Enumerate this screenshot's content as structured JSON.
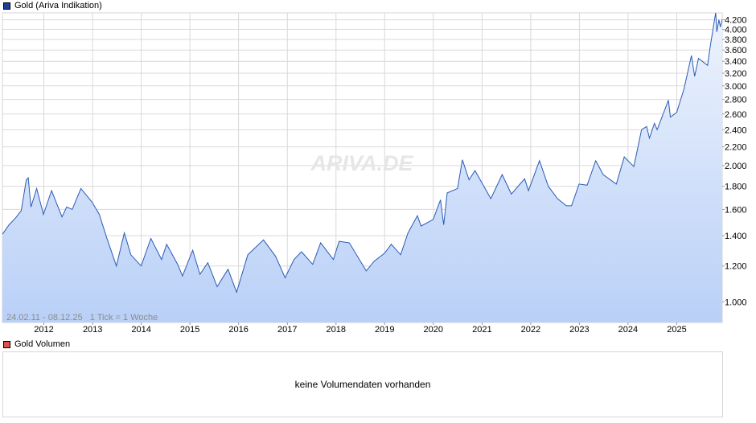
{
  "legend_price": {
    "label": "Gold (Ariva Indikation)",
    "color": "#1f3d99"
  },
  "legend_volume": {
    "label": "Gold Volumen",
    "color": "#d9534f"
  },
  "watermark": "ARIVA.DE",
  "range_info": "24.02.11 - 08.12.25   1 Tick = 1 Woche",
  "volume_message": "keine Volumendaten vorhanden",
  "colors": {
    "line": "#2a5bb5",
    "fill_top": "#eef3fd",
    "fill_bottom": "#b9d0f7",
    "grid": "#d9d9d9"
  },
  "chart_data": {
    "type": "area",
    "title": "Gold (Ariva Indikation)",
    "y_scale": "log",
    "ylim": [
      900,
      4350
    ],
    "xlim": [
      "2011-02-24",
      "2025-12-08"
    ],
    "y_ticks": [
      1000,
      1200,
      1400,
      1600,
      1800,
      2000,
      2200,
      2400,
      2600,
      2800,
      3000,
      3200,
      3400,
      3600,
      3800,
      4000,
      4200
    ],
    "y_tick_labels": [
      "1.000",
      "1.200",
      "1.400",
      "1.600",
      "1.800",
      "2.000",
      "2.200",
      "2.400",
      "2.600",
      "2.800",
      "3.000",
      "3.200",
      "3.400",
      "3.600",
      "3.800",
      "4.000",
      "4.200"
    ],
    "x_ticks": [
      "2012-01-01",
      "2013-01-01",
      "2014-01-01",
      "2015-01-01",
      "2016-01-01",
      "2017-01-01",
      "2018-01-01",
      "2019-01-01",
      "2020-01-01",
      "2021-01-01",
      "2022-01-01",
      "2023-01-01",
      "2024-01-01",
      "2025-01-01"
    ],
    "x_tick_labels": [
      "2012",
      "2013",
      "2014",
      "2015",
      "2016",
      "2017",
      "2018",
      "2019",
      "2020",
      "2021",
      "2022",
      "2023",
      "2024",
      "2025"
    ],
    "grid": true,
    "series": [
      {
        "name": "Gold (Ariva Indikation)",
        "points": [
          [
            "2011-02-24",
            1410
          ],
          [
            "2011-04-15",
            1480
          ],
          [
            "2011-06-01",
            1530
          ],
          [
            "2011-07-15",
            1590
          ],
          [
            "2011-08-22",
            1860
          ],
          [
            "2011-09-06",
            1880
          ],
          [
            "2011-09-26",
            1620
          ],
          [
            "2011-11-08",
            1780
          ],
          [
            "2011-12-29",
            1560
          ],
          [
            "2012-02-28",
            1760
          ],
          [
            "2012-05-16",
            1540
          ],
          [
            "2012-06-20",
            1620
          ],
          [
            "2012-08-01",
            1600
          ],
          [
            "2012-10-05",
            1780
          ],
          [
            "2012-11-15",
            1720
          ],
          [
            "2012-12-28",
            1660
          ],
          [
            "2013-02-20",
            1560
          ],
          [
            "2013-04-15",
            1390
          ],
          [
            "2013-06-28",
            1200
          ],
          [
            "2013-08-27",
            1420
          ],
          [
            "2013-10-15",
            1270
          ],
          [
            "2013-12-31",
            1200
          ],
          [
            "2014-03-14",
            1380
          ],
          [
            "2014-06-02",
            1240
          ],
          [
            "2014-07-10",
            1340
          ],
          [
            "2014-10-01",
            1210
          ],
          [
            "2014-11-06",
            1140
          ],
          [
            "2015-01-22",
            1300
          ],
          [
            "2015-03-17",
            1150
          ],
          [
            "2015-05-15",
            1220
          ],
          [
            "2015-07-24",
            1080
          ],
          [
            "2015-10-14",
            1180
          ],
          [
            "2015-12-17",
            1050
          ],
          [
            "2016-03-10",
            1270
          ],
          [
            "2016-07-06",
            1370
          ],
          [
            "2016-10-05",
            1260
          ],
          [
            "2016-12-15",
            1130
          ],
          [
            "2017-02-20",
            1240
          ],
          [
            "2017-04-17",
            1290
          ],
          [
            "2017-07-10",
            1210
          ],
          [
            "2017-09-08",
            1350
          ],
          [
            "2017-12-12",
            1240
          ],
          [
            "2018-01-25",
            1360
          ],
          [
            "2018-04-11",
            1350
          ],
          [
            "2018-08-16",
            1170
          ],
          [
            "2018-10-15",
            1230
          ],
          [
            "2018-12-31",
            1280
          ],
          [
            "2019-02-20",
            1340
          ],
          [
            "2019-05-01",
            1270
          ],
          [
            "2019-06-25",
            1420
          ],
          [
            "2019-09-04",
            1550
          ],
          [
            "2019-10-01",
            1470
          ],
          [
            "2019-12-31",
            1520
          ],
          [
            "2020-02-24",
            1680
          ],
          [
            "2020-03-19",
            1480
          ],
          [
            "2020-04-14",
            1740
          ],
          [
            "2020-07-01",
            1780
          ],
          [
            "2020-08-06",
            2060
          ],
          [
            "2020-09-25",
            1860
          ],
          [
            "2020-11-09",
            1950
          ],
          [
            "2021-03-08",
            1690
          ],
          [
            "2021-06-01",
            1910
          ],
          [
            "2021-08-09",
            1730
          ],
          [
            "2021-11-16",
            1870
          ],
          [
            "2021-12-15",
            1760
          ],
          [
            "2022-03-08",
            2050
          ],
          [
            "2022-05-13",
            1800
          ],
          [
            "2022-07-21",
            1690
          ],
          [
            "2022-09-26",
            1630
          ],
          [
            "2022-11-03",
            1630
          ],
          [
            "2022-12-30",
            1820
          ],
          [
            "2023-02-28",
            1810
          ],
          [
            "2023-05-04",
            2050
          ],
          [
            "2023-06-29",
            1910
          ],
          [
            "2023-10-05",
            1820
          ],
          [
            "2023-12-04",
            2090
          ],
          [
            "2024-01-15",
            2030
          ],
          [
            "2024-02-14",
            1990
          ],
          [
            "2024-04-12",
            2400
          ],
          [
            "2024-05-20",
            2440
          ],
          [
            "2024-06-10",
            2300
          ],
          [
            "2024-07-17",
            2480
          ],
          [
            "2024-08-07",
            2400
          ],
          [
            "2024-10-30",
            2790
          ],
          [
            "2024-11-14",
            2560
          ],
          [
            "2024-12-31",
            2620
          ],
          [
            "2025-02-24",
            2950
          ],
          [
            "2025-04-21",
            3500
          ],
          [
            "2025-05-15",
            3150
          ],
          [
            "2025-06-13",
            3450
          ],
          [
            "2025-08-20",
            3330
          ],
          [
            "2025-09-08",
            3650
          ],
          [
            "2025-10-20",
            4360
          ],
          [
            "2025-10-28",
            3950
          ],
          [
            "2025-11-13",
            4200
          ],
          [
            "2025-11-24",
            4050
          ],
          [
            "2025-12-08",
            4200
          ]
        ]
      }
    ]
  }
}
